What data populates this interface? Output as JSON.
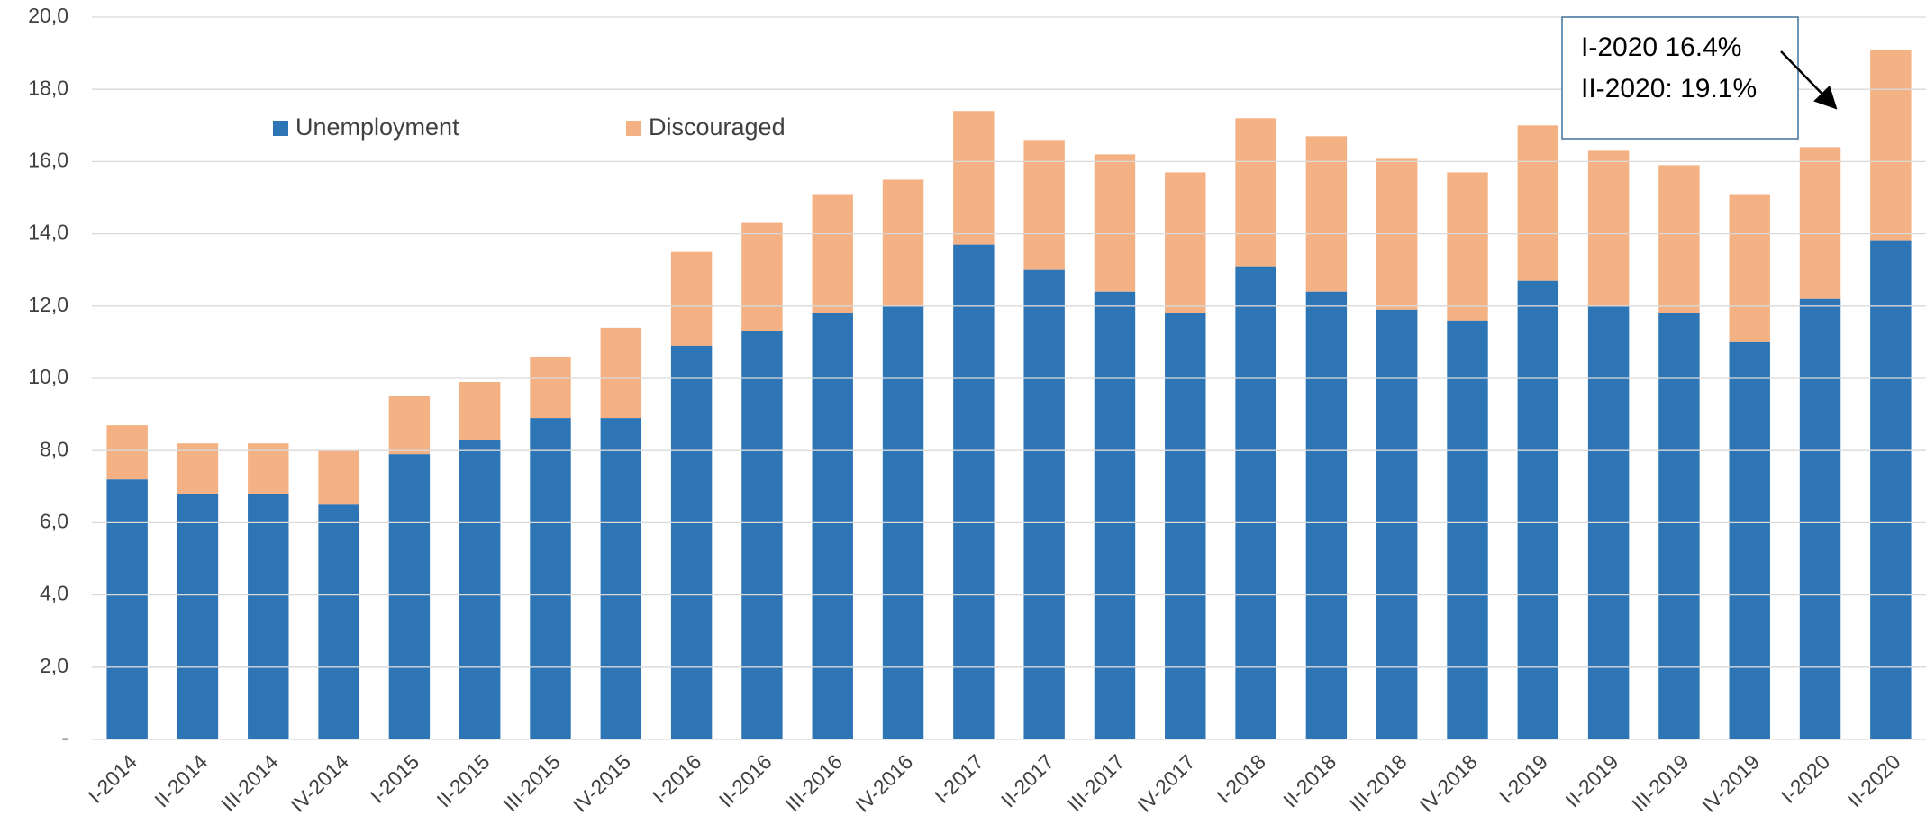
{
  "chart_data": {
    "type": "stacked_bar",
    "categories": [
      "I-2014",
      "II-2014",
      "III-2014",
      "IV-2014",
      "I-2015",
      "II-2015",
      "III-2015",
      "IV-2015",
      "I-2016",
      "II-2016",
      "III-2016",
      "IV-2016",
      "I-2017",
      "II-2017",
      "III-2017",
      "IV-2017",
      "I-2018",
      "II-2018",
      "III-2018",
      "IV-2018",
      "I-2019",
      "II-2019",
      "III-2019",
      "IV-2019",
      "I-2020",
      "II-2020"
    ],
    "series": [
      {
        "name": "Unemployment",
        "color": "#2e75b6",
        "values": [
          7.2,
          6.8,
          6.8,
          6.5,
          7.9,
          8.3,
          8.9,
          8.9,
          10.9,
          11.3,
          11.8,
          12.0,
          13.7,
          13.0,
          12.4,
          11.8,
          13.1,
          12.4,
          11.9,
          11.6,
          12.7,
          12.0,
          11.8,
          11.0,
          12.2,
          13.8
        ]
      },
      {
        "name": "Discouraged",
        "color": "#f4b183",
        "values": [
          1.5,
          1.4,
          1.4,
          1.5,
          1.6,
          1.6,
          1.7,
          2.5,
          2.6,
          3.0,
          3.3,
          3.5,
          3.7,
          3.6,
          3.8,
          3.9,
          4.1,
          4.3,
          4.2,
          4.1,
          4.3,
          4.3,
          4.1,
          4.1,
          4.2,
          5.3
        ]
      }
    ],
    "ylim": [
      0,
      20
    ],
    "yticks": [
      {
        "value": 0,
        "label": "-"
      },
      {
        "value": 2,
        "label": "2,0"
      },
      {
        "value": 4,
        "label": "4,0"
      },
      {
        "value": 6,
        "label": "6,0"
      },
      {
        "value": 8,
        "label": "8,0"
      },
      {
        "value": 10,
        "label": "10,0"
      },
      {
        "value": 12,
        "label": "12,0"
      },
      {
        "value": 14,
        "label": "14,0"
      },
      {
        "value": 16,
        "label": "16,0"
      },
      {
        "value": 18,
        "label": "18,0"
      },
      {
        "value": 20,
        "label": "20,0"
      }
    ],
    "grid": true,
    "annotation": [
      "I-2020 16.4%",
      "II-2020: 19.1%"
    ]
  }
}
